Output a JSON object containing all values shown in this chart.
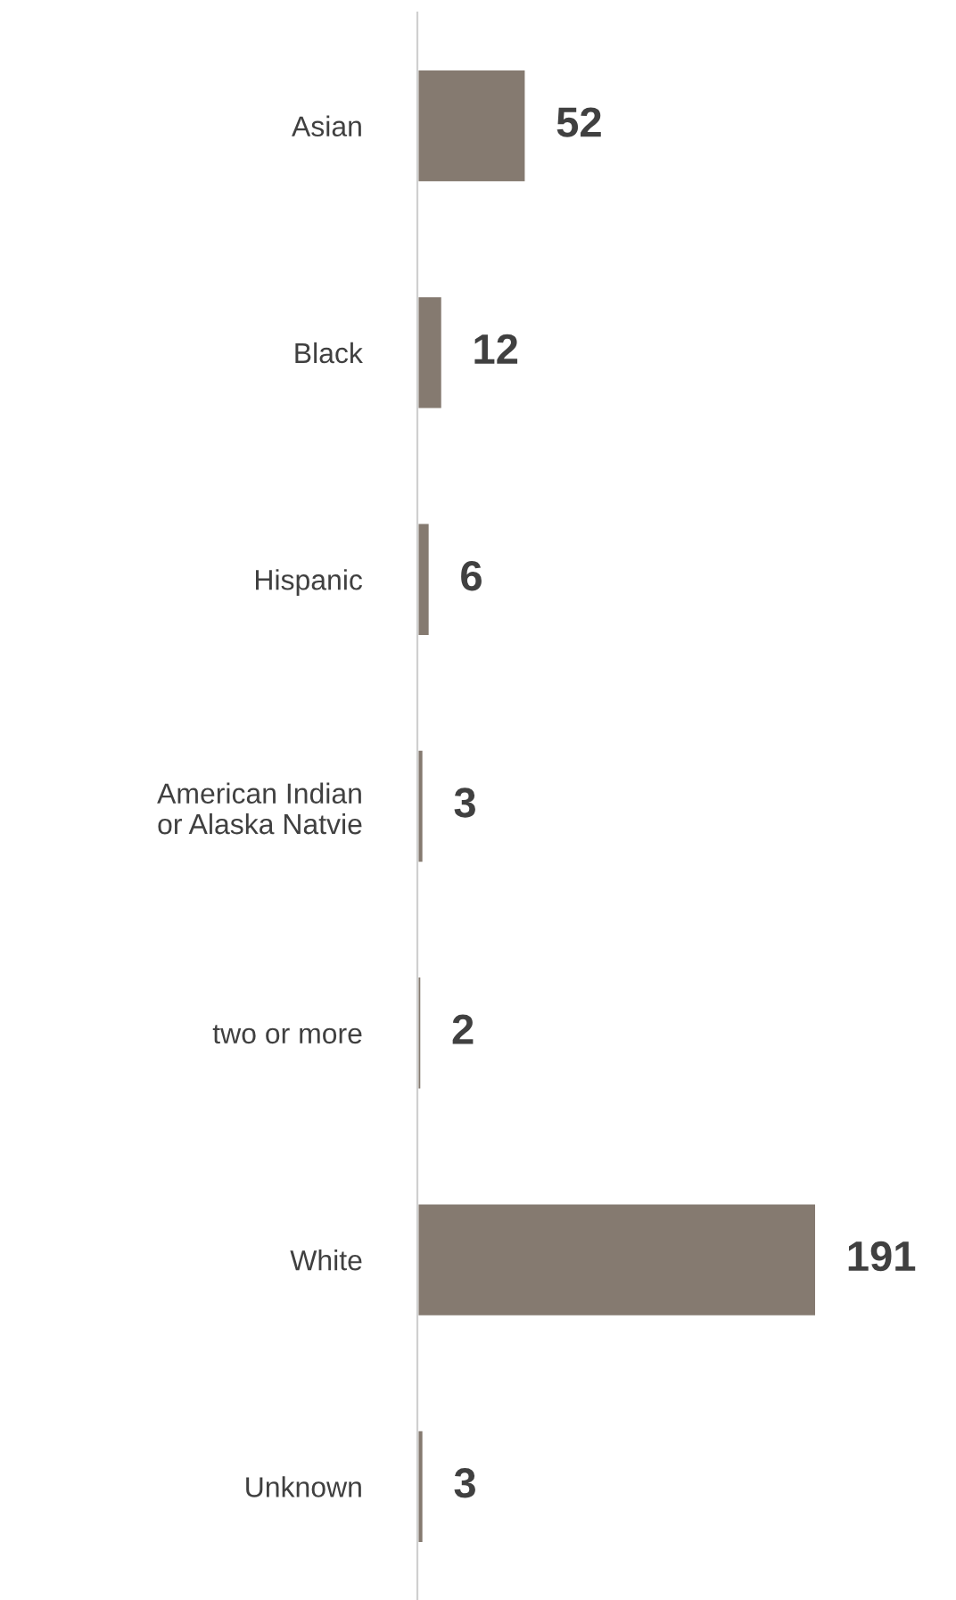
{
  "chart_data": {
    "type": "bar",
    "orientation": "horizontal",
    "categories": [
      "Asian",
      "Black",
      "Hispanic",
      "American Indian\nor Alaska Natvie",
      "two or more",
      "White",
      "Unknown"
    ],
    "values": [
      52,
      12,
      6,
      3,
      2,
      191,
      3
    ],
    "color": "#857a70",
    "data_labels": true,
    "grid": false,
    "legend": false
  }
}
